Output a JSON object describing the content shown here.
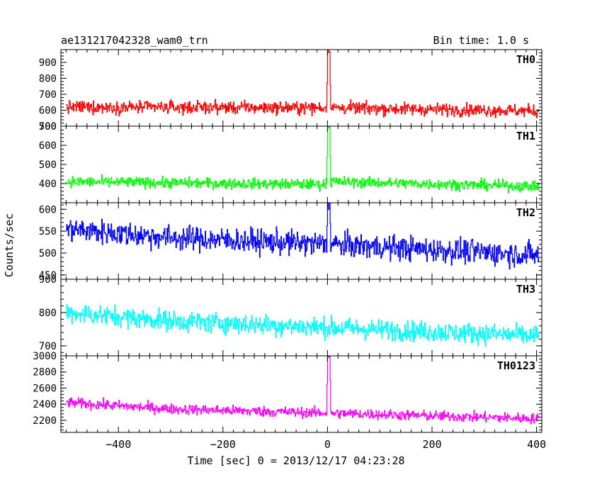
{
  "header": {
    "obs_id": "ae131217042328_wam0_trn",
    "bin_time": "Bin time: 1.0 s"
  },
  "chart_data": {
    "type": "line",
    "title": "ae131217042328_wam0_trn",
    "subtitle": "Bin time: 1.0 s",
    "xlabel": "Time [sec] 0 = 2013/12/17 04:23:28",
    "ylabel": "Counts/sec",
    "xlim": [
      -510,
      410
    ],
    "x_ticks": [
      -400,
      -200,
      0,
      200,
      400
    ],
    "x_range_data": [
      -500,
      404
    ],
    "grid": false,
    "panels": [
      {
        "name": "TH0",
        "color": "#ff0000",
        "ylim": [
          500,
          980
        ],
        "y_ticks": [
          500,
          600,
          700,
          800,
          900
        ],
        "level_points": [
          [
            -500,
            620
          ],
          [
            -10,
            615
          ],
          [
            10,
            615
          ],
          [
            404,
            595
          ]
        ],
        "noise": 28,
        "burst": {
          "peak": 975,
          "base": 620
        }
      },
      {
        "name": "TH1",
        "color": "#00ff00",
        "ylim": [
          300,
          700
        ],
        "y_ticks": [
          400,
          500,
          600,
          700
        ],
        "level_points": [
          [
            -500,
            410
          ],
          [
            -10,
            395
          ],
          [
            10,
            410
          ],
          [
            404,
            385
          ]
        ],
        "noise": 20,
        "burst": {
          "peak": 700,
          "base": 410
        }
      },
      {
        "name": "TH2",
        "color": "#0000ff",
        "ylim": [
          440,
          615
        ],
        "y_ticks": [
          450,
          500,
          550,
          600
        ],
        "level_points": [
          [
            -500,
            555
          ],
          [
            -300,
            535
          ],
          [
            0,
            520
          ],
          [
            404,
            495
          ]
        ],
        "noise": 20,
        "burst": {
          "peak": 615,
          "base": 530
        }
      },
      {
        "name": "TH3",
        "color": "#00ffff",
        "ylim": [
          670,
          900
        ],
        "y_ticks": [
          700,
          800,
          900
        ],
        "level_points": [
          [
            -500,
            800
          ],
          [
            -300,
            775
          ],
          [
            0,
            755
          ],
          [
            404,
            730
          ]
        ],
        "noise": 22,
        "burst": null
      },
      {
        "name": "TH0123",
        "color": "#ff00ff",
        "ylim": [
          2050,
          3000
        ],
        "y_ticks": [
          2200,
          2400,
          2600,
          2800,
          3000
        ],
        "level_points": [
          [
            -500,
            2420
          ],
          [
            -300,
            2340
          ],
          [
            0,
            2290
          ],
          [
            404,
            2220
          ]
        ],
        "noise": 45,
        "burst": {
          "peak": 3000,
          "base": 2350
        }
      }
    ]
  }
}
